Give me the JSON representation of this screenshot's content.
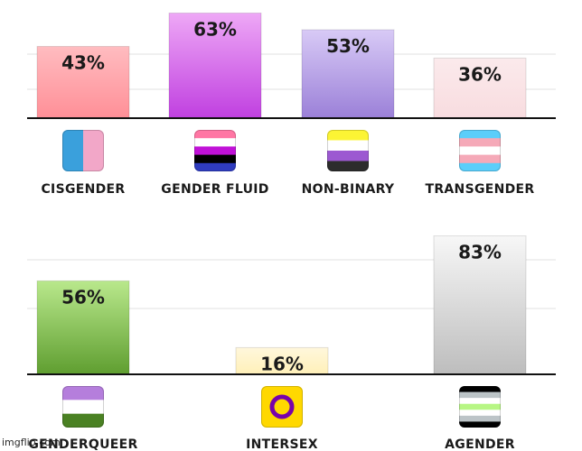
{
  "chart_data": [
    {
      "type": "bar",
      "categories": [
        "CISGENDER",
        "GENDER FLUID",
        "NON-BINARY",
        "TRANSGENDER"
      ],
      "values": [
        43,
        63,
        53,
        36
      ],
      "value_labels": [
        "43%",
        "63%",
        "53%",
        "36%"
      ],
      "ylim": [
        0,
        100
      ],
      "grid": true,
      "colors": [
        [
          "#ff8f97",
          "#ffbcc0"
        ],
        [
          "#c040e0",
          "#eea8f6"
        ],
        [
          "#9b80d8",
          "#d8caf6"
        ],
        [
          "#f8dcdf",
          "#fbeaec"
        ]
      ],
      "icons": [
        "cisgender-flag-icon",
        "genderfluid-flag-icon",
        "nonbinary-flag-icon",
        "transgender-flag-icon"
      ]
    },
    {
      "type": "bar",
      "categories": [
        "GENDERQUEER",
        "INTERSEX",
        "AGENDER"
      ],
      "values": [
        56,
        16,
        83
      ],
      "value_labels": [
        "56%",
        "16%",
        "83%"
      ],
      "ylim": [
        0,
        100
      ],
      "grid": true,
      "colors": [
        [
          "#5f9e30",
          "#b9e88c"
        ],
        [
          "#fff0b8",
          "#fff7dc"
        ],
        [
          "#bdbdbd",
          "#f7f7f7"
        ]
      ],
      "icons": [
        "genderqueer-flag-icon",
        "intersex-flag-icon",
        "agender-flag-icon"
      ]
    }
  ],
  "watermark": "imgflip.com"
}
